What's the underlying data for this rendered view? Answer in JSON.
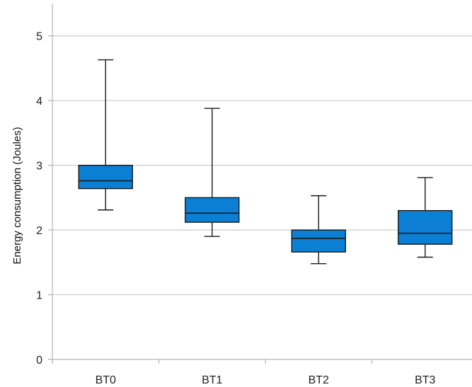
{
  "chart_data": {
    "type": "boxplot",
    "title": "",
    "xlabel": "",
    "ylabel": "Energy consumption (Joules)",
    "ylim": [
      0,
      5.5
    ],
    "yticks": [
      0,
      1,
      2,
      3,
      4,
      5
    ],
    "grid": "horizontal",
    "categories": [
      "BT0",
      "BT1",
      "BT2",
      "BT3"
    ],
    "boxes": [
      {
        "category": "BT0",
        "min": 2.31,
        "q1": 2.64,
        "median": 2.76,
        "q3": 3.0,
        "max": 4.63
      },
      {
        "category": "BT1",
        "min": 1.9,
        "q1": 2.12,
        "median": 2.26,
        "q3": 2.5,
        "max": 3.88
      },
      {
        "category": "BT2",
        "min": 1.48,
        "q1": 1.66,
        "median": 1.87,
        "q3": 2.0,
        "max": 2.53
      },
      {
        "category": "BT3",
        "min": 1.58,
        "q1": 1.78,
        "median": 1.95,
        "q3": 2.3,
        "max": 2.81
      }
    ],
    "colors": {
      "box_fill": "#0a7fd4",
      "box_stroke": "#1a1a1a",
      "grid": "#cccccc",
      "axis": "#b3b3b3"
    }
  }
}
